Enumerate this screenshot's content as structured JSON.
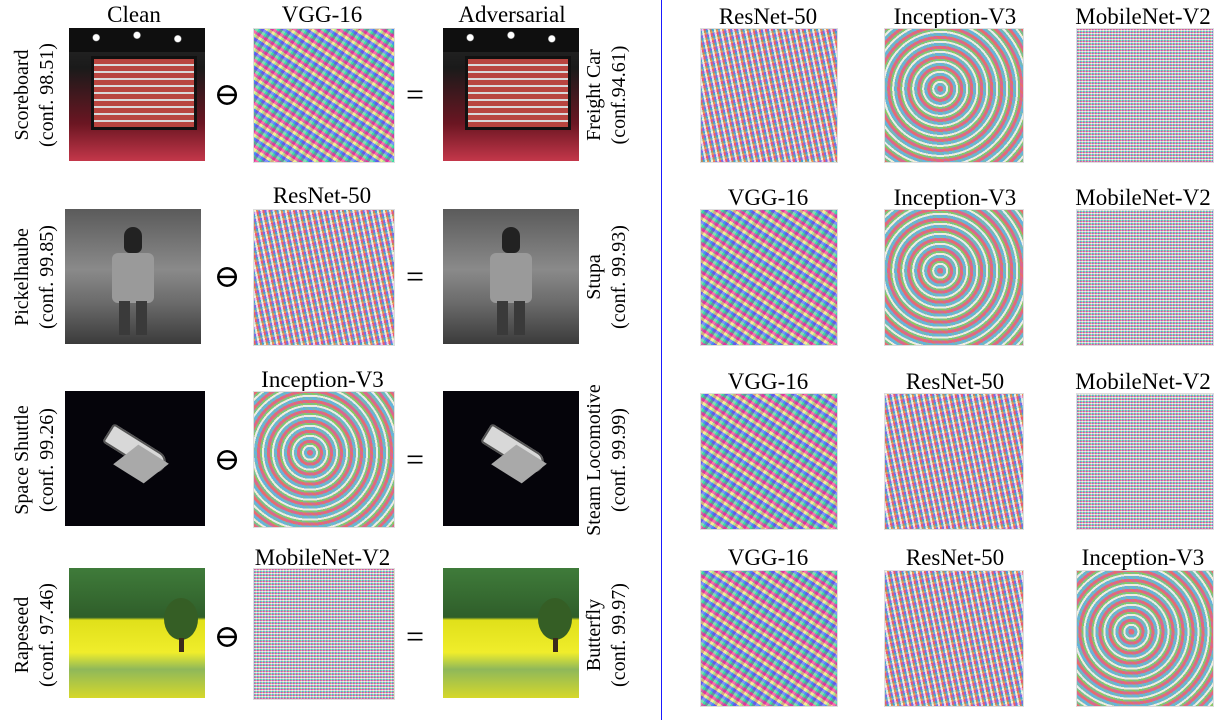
{
  "left_panel": {
    "headers": {
      "clean": "Clean",
      "adversarial": "Adversarial"
    },
    "operators": {
      "minus": "⊖",
      "equals": "="
    },
    "rows": [
      {
        "model": "VGG-16",
        "clean_label": "Scoreboard",
        "clean_conf": "(conf. 98.51)",
        "adv_label": "Freight Car",
        "adv_conf": "(conf.94.61)"
      },
      {
        "model": "ResNet-50",
        "clean_label": "Pickelhaube",
        "clean_conf": "(conf. 99.85)",
        "adv_label": "Stupa",
        "adv_conf": "(conf. 99.93)"
      },
      {
        "model": "Inception-V3",
        "clean_label": "Space Shuttle",
        "clean_conf": "(conf. 99.26)",
        "adv_label": "Steam Locomotive",
        "adv_conf": "(conf. 99.99)"
      },
      {
        "model": "MobileNet-V2",
        "clean_label": "Rapeseed",
        "clean_conf": "(conf. 97.46)",
        "adv_label": "Butterfly",
        "adv_conf": "(conf. 99.97)"
      }
    ]
  },
  "right_panel": {
    "rows": [
      [
        "ResNet-50",
        "Inception-V3",
        "MobileNet-V2"
      ],
      [
        "VGG-16",
        "Inception-V3",
        "MobileNet-V2"
      ],
      [
        "VGG-16",
        "ResNet-50",
        "MobileNet-V2"
      ],
      [
        "VGG-16",
        "ResNet-50",
        "Inception-V3"
      ]
    ]
  },
  "colors": {
    "divider": "#1a1aff"
  }
}
